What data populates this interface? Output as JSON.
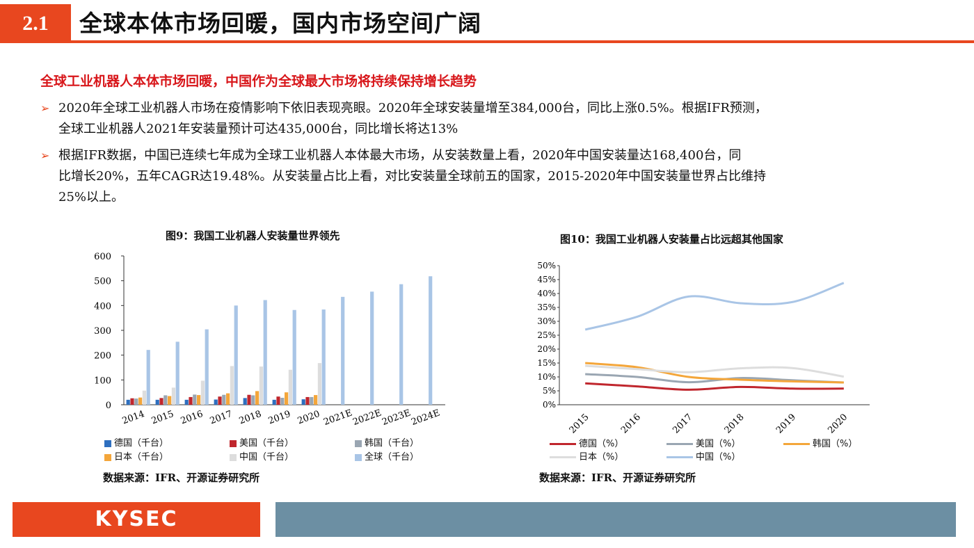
{
  "header": {
    "section_number": "2.1",
    "title": "全球本体市场回暖，国内市场空间广阔"
  },
  "headline": "全球工业机器人本体市场回暖，中国作为全球最大市场将持续保持增长趋势",
  "bullets": [
    {
      "arrow": "➢",
      "lines": [
        "2020年全球工业机器人市场在疫情影响下依旧表现亮眼。2020年全球安装量增至384,000台，同比上涨0.5%。根据IFR预测，",
        "全球工业机器人2021年安装量预计可达435,000台，同比增长将达13%"
      ]
    },
    {
      "arrow": "➢",
      "lines": [
        "根据IFR数据，中国已连续七年成为全球工业机器人本体最大市场，从安装数量上看，2020年中国安装量达168,400台，同",
        "比增长20%，五年CAGR达19.48%。从安装量占比上看，对比安装量全球前五的国家，2015-2020年中国安装量世界占比维持",
        "25%以上。"
      ]
    }
  ],
  "figure9": {
    "title": "图9：我国工业机器人安装量世界领先",
    "source": "数据来源：IFR、开源证券研究所"
  },
  "figure10": {
    "title": "图10：我国工业机器人安装量占比远超其他国家",
    "source": "数据来源：IFR、开源证券研究所"
  },
  "footer": {
    "logo": "KYSEC"
  },
  "chart_data": [
    {
      "type": "bar",
      "categories": [
        "2014",
        "2015",
        "2016",
        "2017",
        "2018",
        "2019",
        "2020",
        "2021E",
        "2022E",
        "2023E",
        "2024E"
      ],
      "ylim": [
        0,
        600
      ],
      "yticks": [
        "0",
        "100",
        "200",
        "300",
        "400",
        "500",
        "600"
      ],
      "series": [
        {
          "name": "德国（千台）",
          "color": "#2e6fbf",
          "values": [
            20,
            20,
            20,
            21,
            27,
            20,
            22,
            null,
            null,
            null,
            null
          ]
        },
        {
          "name": "美国（千台）",
          "color": "#c0262d",
          "values": [
            26,
            27,
            31,
            33,
            40,
            33,
            31,
            null,
            null,
            null,
            null
          ]
        },
        {
          "name": "韩国（千台）",
          "color": "#9aa6b2",
          "values": [
            25,
            38,
            41,
            40,
            38,
            28,
            31,
            null,
            null,
            null,
            null
          ]
        },
        {
          "name": "日本（千台）",
          "color": "#f4a63a",
          "values": [
            29,
            35,
            39,
            46,
            55,
            50,
            39,
            null,
            null,
            null,
            null
          ]
        },
        {
          "name": "中国（千台）",
          "color": "#dddddd",
          "values": [
            57,
            69,
            97,
            156,
            154,
            141,
            168,
            null,
            null,
            null,
            null
          ]
        },
        {
          "name": "全球（千台）",
          "color": "#a9c5e6",
          "values": [
            221,
            254,
            304,
            400,
            422,
            382,
            384,
            435,
            456,
            486,
            518
          ]
        }
      ]
    },
    {
      "type": "line",
      "categories": [
        "2015",
        "2016",
        "2017",
        "2018",
        "2019",
        "2020"
      ],
      "ylim": [
        0,
        50
      ],
      "yticks": [
        "0%",
        "5%",
        "10%",
        "15%",
        "20%",
        "25%",
        "30%",
        "35%",
        "40%",
        "45%",
        "50%"
      ],
      "series": [
        {
          "name": "德国（%）",
          "color": "#c0262d",
          "values": [
            7.7,
            6.6,
            5.4,
            6.4,
            5.8,
            5.8
          ]
        },
        {
          "name": "美国（%）",
          "color": "#9aa6b2",
          "values": [
            11,
            10,
            8.1,
            9.6,
            8.8,
            8.0
          ]
        },
        {
          "name": "韩国（%）",
          "color": "#f4a63a",
          "values": [
            15,
            13.5,
            10,
            9.0,
            8.4,
            8.0
          ]
        },
        {
          "name": "日本（%）",
          "color": "#dddddd",
          "values": [
            14,
            12.8,
            11.7,
            13.1,
            13.2,
            10.1
          ]
        },
        {
          "name": "中国（%）",
          "color": "#a9c5e6",
          "values": [
            27,
            31.6,
            38.9,
            36.5,
            36.9,
            43.8
          ]
        }
      ]
    }
  ]
}
